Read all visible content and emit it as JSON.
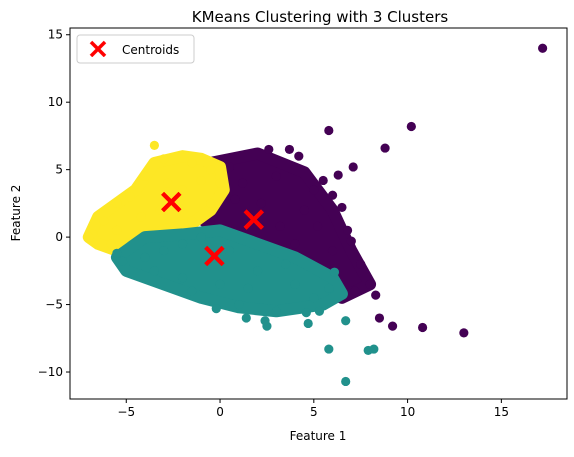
{
  "chart_data": {
    "type": "scatter",
    "title": "KMeans Clustering with 3 Clusters",
    "xlabel": "Feature 1",
    "ylabel": "Feature 2",
    "xlim": [
      -8,
      18.5
    ],
    "ylim": [
      -12,
      15.5
    ],
    "x_ticks": [
      -5,
      0,
      5,
      10,
      15
    ],
    "y_ticks": [
      -10,
      -5,
      0,
      5,
      10,
      15
    ],
    "grid": false,
    "legend": {
      "position": "top-left",
      "entries": [
        {
          "label": "Centroids",
          "color": "#ff0000",
          "marker": "X"
        }
      ]
    },
    "clusters": [
      {
        "color": "#440154",
        "centroid": [
          1.8,
          1.3
        ],
        "core_region": [
          [
            -0.5,
            5.5
          ],
          [
            2,
            6.2
          ],
          [
            4.5,
            4.8
          ],
          [
            6,
            2
          ],
          [
            7,
            -1
          ],
          [
            8,
            -3.5
          ],
          [
            6.5,
            -4.5
          ],
          [
            4,
            -3
          ],
          [
            2,
            -1.2
          ],
          [
            0,
            0.2
          ],
          [
            -1.5,
            2
          ],
          [
            -1,
            4.5
          ]
        ],
        "points": [
          [
            17.2,
            14
          ],
          [
            10.2,
            8.2
          ],
          [
            5.8,
            7.9
          ],
          [
            8.8,
            6.6
          ],
          [
            3.7,
            6.5
          ],
          [
            2.6,
            6.5
          ],
          [
            4.2,
            6.0
          ],
          [
            7.1,
            5.2
          ],
          [
            6.3,
            4.6
          ],
          [
            5.5,
            4.2
          ],
          [
            6.0,
            3.1
          ],
          [
            5.0,
            3.5
          ],
          [
            6.5,
            2.2
          ],
          [
            6.8,
            0.5
          ],
          [
            7.0,
            -0.3
          ],
          [
            6.0,
            -1.0
          ],
          [
            7.5,
            -2.0
          ],
          [
            8.0,
            -3.5
          ],
          [
            8.3,
            -4.3
          ],
          [
            7.2,
            -4.0
          ],
          [
            8.5,
            -6.0
          ],
          [
            9.2,
            -6.6
          ],
          [
            10.8,
            -6.7
          ],
          [
            13.0,
            -7.1
          ],
          [
            5.5,
            -2.5
          ],
          [
            4.8,
            -1.8
          ],
          [
            3.5,
            -2.5
          ],
          [
            2.5,
            -0.8
          ],
          [
            1.5,
            -0.5
          ],
          [
            0.5,
            0.5
          ],
          [
            -0.5,
            1.5
          ],
          [
            -1.0,
            3.0
          ],
          [
            0.5,
            5.2
          ],
          [
            1.2,
            4.0
          ],
          [
            3.0,
            4.5
          ],
          [
            4.5,
            2.0
          ],
          [
            3.2,
            0.8
          ],
          [
            2.2,
            2.5
          ],
          [
            -0.2,
            4.2
          ],
          [
            1.8,
            1.3
          ],
          [
            0.8,
            2.8
          ],
          [
            4.0,
            -0.5
          ],
          [
            5.2,
            0.8
          ],
          [
            6.2,
            -3.2
          ]
        ]
      },
      {
        "color": "#fde725",
        "centroid": [
          -2.6,
          2.6
        ],
        "core_region": [
          [
            -7,
            0
          ],
          [
            -6.5,
            1.5
          ],
          [
            -4.5,
            3.5
          ],
          [
            -3.5,
            5.5
          ],
          [
            -2,
            6
          ],
          [
            -1,
            5.8
          ],
          [
            0,
            5.2
          ],
          [
            0.2,
            3.5
          ],
          [
            -0.5,
            2
          ],
          [
            -1.5,
            1
          ],
          [
            -3,
            0.5
          ],
          [
            -4.5,
            -0.5
          ],
          [
            -5.5,
            -1
          ],
          [
            -6.5,
            -0.5
          ]
        ],
        "points": [
          [
            -3.5,
            6.8
          ],
          [
            -6.8,
            0.2
          ],
          [
            -7.0,
            0.0
          ],
          [
            -6.2,
            1.2
          ],
          [
            -5.5,
            2.5
          ],
          [
            -4.8,
            3.0
          ],
          [
            -4.0,
            4.5
          ],
          [
            -3.0,
            5.8
          ],
          [
            -1.5,
            5.5
          ],
          [
            -0.5,
            5.0
          ],
          [
            0.0,
            4.0
          ],
          [
            -0.5,
            2.5
          ],
          [
            -1.5,
            1.2
          ],
          [
            -2.5,
            0.6
          ],
          [
            -3.5,
            0.0
          ],
          [
            -4.5,
            -0.5
          ],
          [
            -5.0,
            -1.0
          ],
          [
            -5.8,
            -0.5
          ],
          [
            -2.0,
            3.5
          ],
          [
            -3.2,
            2.0
          ],
          [
            -4.2,
            1.5
          ],
          [
            -1.0,
            4.2
          ],
          [
            -2.8,
            4.0
          ],
          [
            -5.5,
            0.5
          ]
        ]
      },
      {
        "color": "#21918c",
        "centroid": [
          -0.3,
          -1.4
        ],
        "core_region": [
          [
            -5.5,
            -1.5
          ],
          [
            -4,
            0
          ],
          [
            -2,
            0.2
          ],
          [
            0,
            0.5
          ],
          [
            2,
            -0.5
          ],
          [
            4,
            -1.5
          ],
          [
            6,
            -3
          ],
          [
            6.5,
            -4.2
          ],
          [
            5.5,
            -5
          ],
          [
            3,
            -5.5
          ],
          [
            1,
            -5.2
          ],
          [
            -1,
            -4.5
          ],
          [
            -3,
            -3.5
          ],
          [
            -5,
            -2.5
          ]
        ],
        "points": [
          [
            6.7,
            -10.7
          ],
          [
            5.8,
            -8.3
          ],
          [
            7.9,
            -8.4
          ],
          [
            8.2,
            -8.3
          ],
          [
            6.7,
            -6.2
          ],
          [
            5.3,
            -5.5
          ],
          [
            4.6,
            -5.6
          ],
          [
            4.7,
            -6.4
          ],
          [
            2.5,
            -6.6
          ],
          [
            2.4,
            -6.2
          ],
          [
            1.4,
            -6.0
          ],
          [
            -0.2,
            -5.3
          ],
          [
            1.0,
            -5.0
          ],
          [
            3.0,
            -5.5
          ],
          [
            5.0,
            -4.5
          ],
          [
            6.1,
            -2.6
          ],
          [
            5.8,
            -3.8
          ],
          [
            4.0,
            -3.5
          ],
          [
            2.0,
            -2.5
          ],
          [
            0.5,
            -1.0
          ],
          [
            -1.0,
            0.0
          ],
          [
            -2.0,
            -0.5
          ],
          [
            -3.0,
            -1.0
          ],
          [
            -4.0,
            -1.5
          ],
          [
            -5.2,
            -1.8
          ],
          [
            -5.5,
            -1.2
          ],
          [
            -3.5,
            -2.5
          ],
          [
            -2.0,
            -3.0
          ],
          [
            -1.5,
            -4.0
          ],
          [
            0.0,
            -3.5
          ],
          [
            1.5,
            -3.8
          ],
          [
            3.5,
            -2.0
          ],
          [
            -0.3,
            -1.4
          ]
        ]
      }
    ]
  }
}
